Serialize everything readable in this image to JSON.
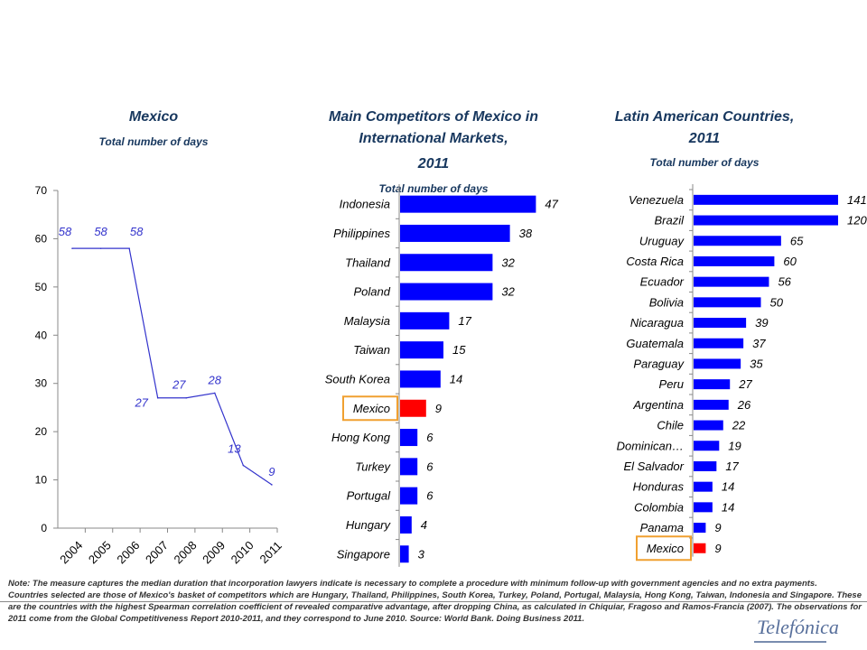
{
  "chart_data": [
    {
      "type": "line",
      "title": "Mexico",
      "subtitle": "Total number of days",
      "x": [
        "2004",
        "2005",
        "2006",
        "2007",
        "2008",
        "2009",
        "2010",
        "2011"
      ],
      "values": [
        58,
        58,
        58,
        27,
        27,
        28,
        13,
        9
      ],
      "ylim": [
        0,
        70
      ],
      "yticks": [
        "0",
        "10",
        "20",
        "30",
        "40",
        "50",
        "60",
        "70"
      ],
      "color": "#3333cc"
    },
    {
      "type": "bar",
      "orientation": "horizontal",
      "title": "Main Competitors of Mexico in International Markets,",
      "title_year": "2011",
      "subtitle": "Total number of days",
      "categories": [
        "Indonesia",
        "Philippines",
        "Thailand",
        "Poland",
        "Malaysia",
        "Taiwan",
        "South Korea",
        "Mexico",
        "Hong Kong",
        "Turkey",
        "Portugal",
        "Hungary",
        "Singapore"
      ],
      "values": [
        47,
        38,
        32,
        32,
        17,
        15,
        14,
        9,
        6,
        6,
        6,
        4,
        3
      ],
      "highlight": "Mexico",
      "bar_color": "#0000ff",
      "highlight_color": "#ff0000"
    },
    {
      "type": "bar",
      "orientation": "horizontal",
      "title": "Latin American Countries,",
      "title_year": "2011",
      "subtitle": "Total number of days",
      "categories": [
        "Venezuela",
        "Brazil",
        "Uruguay",
        "Costa Rica",
        "Ecuador",
        "Bolivia",
        "Nicaragua",
        "Guatemala",
        "Paraguay",
        "Peru",
        "Argentina",
        "Chile",
        "Dominican…",
        "El Salvador",
        "Honduras",
        "Colombia",
        "Panama",
        "Mexico"
      ],
      "values": [
        141,
        120,
        65,
        60,
        56,
        50,
        39,
        37,
        35,
        27,
        26,
        22,
        19,
        17,
        14,
        14,
        9,
        9
      ],
      "highlight": "Mexico",
      "bar_color": "#0000ff",
      "highlight_color": "#ff0000"
    }
  ],
  "notes": {
    "note1": "Note: The measure captures the median duration that incorporation lawyers indicate is necessary to complete a procedure with minimum follow-up with government agencies and no extra payments.",
    "note2": "Countries selected are those of Mexico's basket of competitors which are Hungary, Thailand, Philippines, South Korea, Turkey, Poland, Portugal, Malaysia, Hong Kong, Taiwan, Indonesia and Singapore. These are the countries with the highest Spearman correlation coefficient of revealed comparative advantage, after dropping China, as calculated in Chiquiar, Fragoso and Ramos-Francia (2007). The observations for 2011 come from the Global Competitiveness Report 2010-2011, and they correspond to June 2010. Source: World Bank. Doing Business 2011."
  },
  "logo": "Telefónica"
}
